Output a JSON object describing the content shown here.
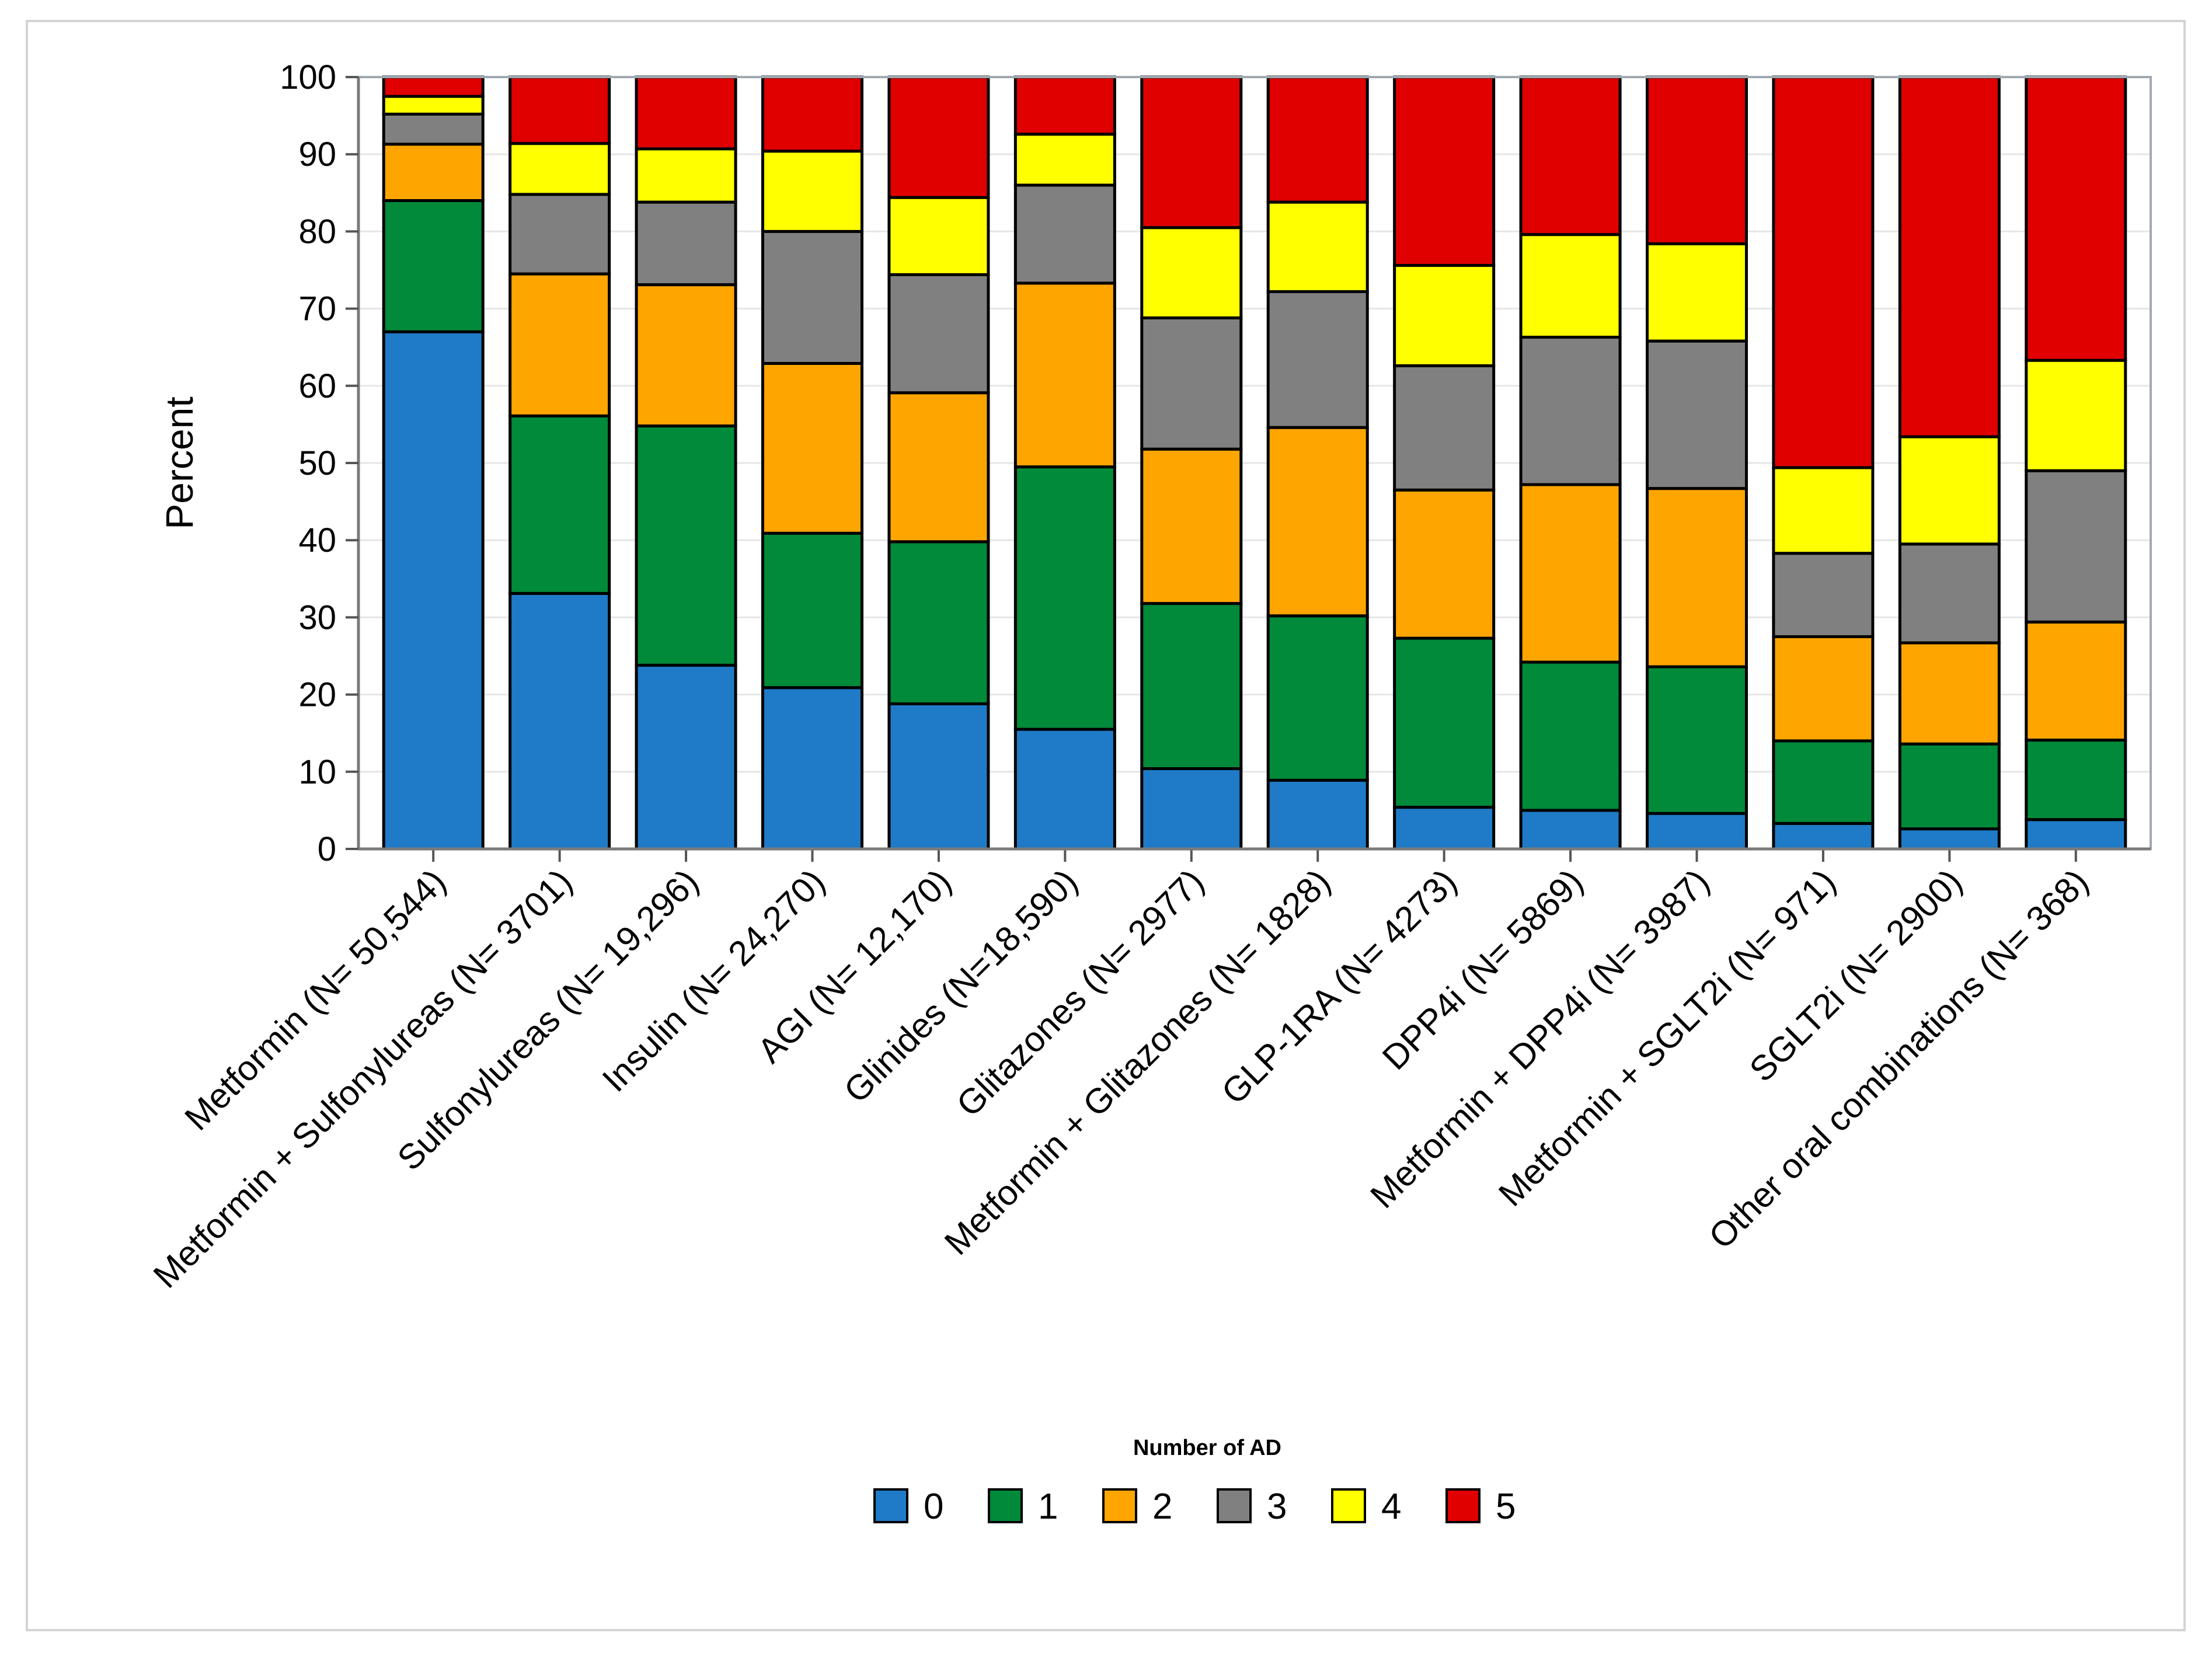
{
  "chart_data": {
    "type": "bar",
    "stacked": true,
    "ylabel": "Percent",
    "xlabel": "",
    "ylim": [
      0,
      100
    ],
    "yticks": [
      0,
      10,
      20,
      30,
      40,
      50,
      60,
      70,
      80,
      90,
      100
    ],
    "grid": true,
    "legend": {
      "title": "Number of AD",
      "position": "bottom-center"
    },
    "categories": [
      "Metformin (N= 50,544)",
      "Metformin + Sulfonylureas (N= 3701)",
      "Sulfonylureas (N= 19,296)",
      "Insulin (N= 24,270)",
      "AGI (N= 12,170)",
      "Glinides (N=18,590)",
      "Glitazones (N= 2977)",
      "Metformin + Glitazones (N= 1828)",
      "GLP-1RA (N= 4273)",
      "DPP4i (N= 5869)",
      "Metformin + DPP4i (N= 3987)",
      "Metformin + SGLT2i (N= 971)",
      "SGLT2i (N= 2900)",
      "Other  oral combinations (N= 368)"
    ],
    "series": [
      {
        "name": "0",
        "color": "#1f7bc7",
        "values": [
          67.0,
          33.1,
          23.8,
          20.9,
          18.8,
          15.5,
          10.4,
          8.9,
          5.4,
          5.0,
          4.6,
          3.3,
          2.6,
          3.8
        ]
      },
      {
        "name": "1",
        "color": "#008a3a",
        "values": [
          17.0,
          23.0,
          31.0,
          20.0,
          21.0,
          34.0,
          21.4,
          21.3,
          21.9,
          19.2,
          19.0,
          10.7,
          11.0,
          10.3
        ]
      },
      {
        "name": "2",
        "color": "#ffa500",
        "values": [
          7.3,
          18.4,
          18.3,
          22.0,
          19.3,
          23.8,
          20.0,
          24.4,
          19.2,
          23.0,
          23.1,
          13.5,
          13.1,
          15.3
        ]
      },
      {
        "name": "3",
        "color": "#808080",
        "values": [
          3.9,
          10.3,
          10.7,
          17.1,
          15.3,
          12.7,
          17.0,
          17.6,
          16.1,
          19.1,
          19.1,
          10.8,
          12.8,
          19.6
        ]
      },
      {
        "name": "4",
        "color": "#ffff00",
        "values": [
          2.3,
          6.6,
          6.9,
          10.4,
          10.0,
          6.6,
          11.7,
          11.6,
          13.0,
          13.3,
          12.6,
          11.1,
          13.9,
          14.3
        ]
      },
      {
        "name": "5",
        "color": "#e00000",
        "values": [
          2.5,
          8.6,
          9.3,
          9.6,
          15.6,
          7.4,
          19.5,
          16.2,
          24.4,
          20.4,
          21.6,
          50.6,
          46.6,
          36.7
        ]
      }
    ]
  }
}
